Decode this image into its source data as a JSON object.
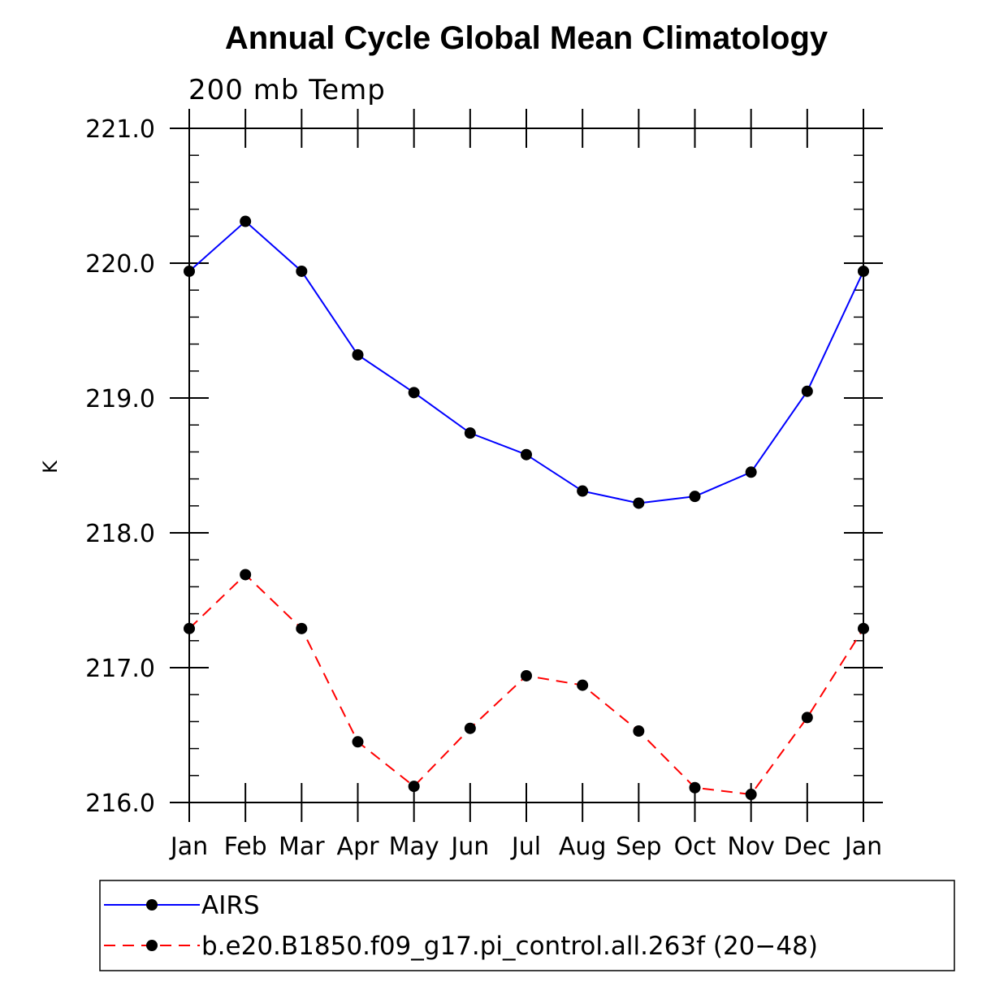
{
  "chart_data": {
    "type": "line",
    "title": "Annual Cycle Global Mean Climatology",
    "subtitle": "200 mb Temp",
    "xlabel": "",
    "ylabel": "K",
    "categories": [
      "Jan",
      "Feb",
      "Mar",
      "Apr",
      "May",
      "Jun",
      "Jul",
      "Aug",
      "Sep",
      "Oct",
      "Nov",
      "Dec",
      "Jan"
    ],
    "ylim": [
      216.0,
      221.0
    ],
    "yticks": [
      "216.0",
      "217.0",
      "218.0",
      "219.0",
      "220.0",
      "221.0"
    ],
    "grid": false,
    "legend_position": "bottom",
    "series": [
      {
        "name": "AIRS",
        "color": "#0000ff",
        "dash": "solid",
        "values": [
          219.94,
          220.31,
          219.94,
          219.32,
          219.04,
          218.74,
          218.58,
          218.31,
          218.22,
          218.27,
          218.45,
          219.05,
          219.94
        ]
      },
      {
        "name": "b.e20.B1850.f09_g17.pi_control.all.263f (20−48)",
        "color": "#ff0000",
        "dash": "dashed",
        "values": [
          217.29,
          217.69,
          217.29,
          216.45,
          216.12,
          216.55,
          216.94,
          216.87,
          216.53,
          216.11,
          216.06,
          216.63,
          217.29
        ]
      }
    ]
  }
}
